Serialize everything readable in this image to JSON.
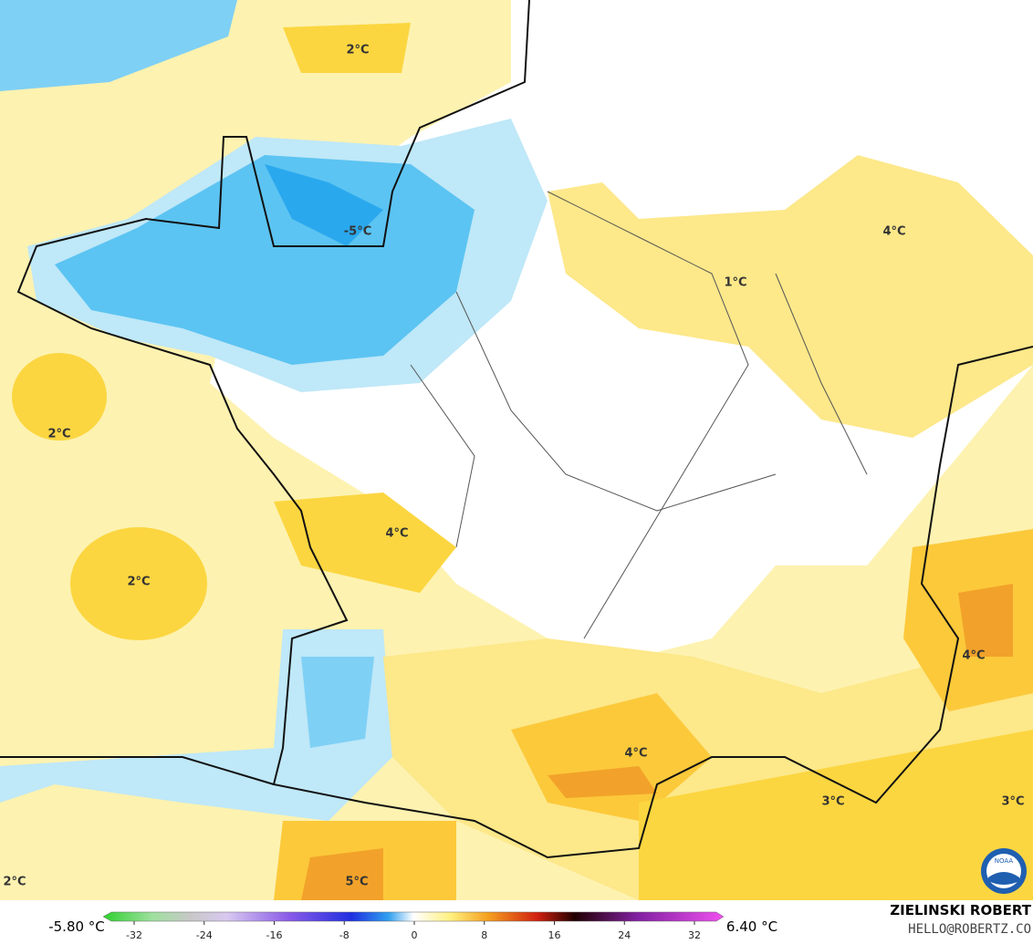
{
  "map": {
    "labels": [
      "2°C",
      "-5°C",
      "4°C",
      "1°C",
      "2°C",
      "4°C",
      "2°C",
      "4°C",
      "4°C",
      "3°C",
      "3°C",
      "2°C",
      "5°C"
    ],
    "logo": "NOAA"
  },
  "colorbar": {
    "min_label": "-5.80 °C",
    "max_label": "6.40 °C",
    "ticks": [
      -32,
      -24,
      -16,
      -8,
      0,
      8,
      16,
      24,
      32
    ]
  },
  "credit": {
    "author": "ZIELINSKI ROBERT",
    "contact": "HELLO@ROBERTZ.CO"
  }
}
